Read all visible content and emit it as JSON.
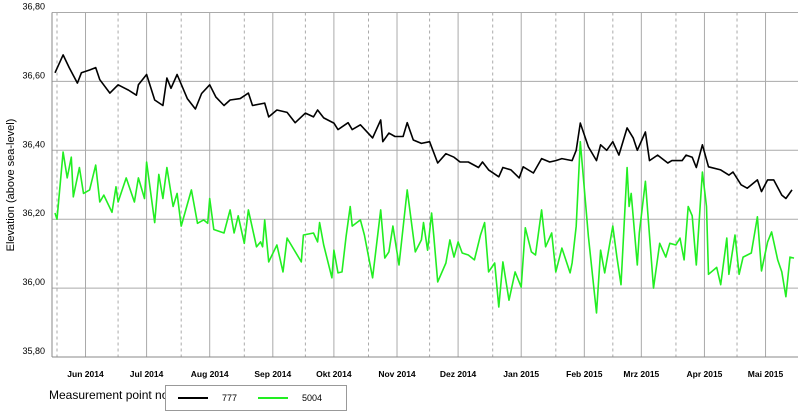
{
  "chart_data": {
    "type": "line",
    "title": "",
    "xlabel": "",
    "ylabel": "Elevation (above sea-level)",
    "ylim": [
      35.8,
      36.8
    ],
    "xlim": [
      "2014-05-30",
      "2015-05-31"
    ],
    "grid": true,
    "y_ticks": [
      "36,80",
      "36,60",
      "36,40",
      "36,20",
      "36,00",
      "35,80"
    ],
    "y_tick_values": [
      36.8,
      36.6,
      36.4,
      36.2,
      36.0,
      35.8
    ],
    "x_ticks": [
      "Jun 2014",
      "Jul 2014",
      "Aug 2014",
      "Sep 2014",
      "Okt 2014",
      "Nov 2014",
      "Dez 2014",
      "Jan 2015",
      "Feb 2015",
      "Mrz 2015",
      "Apr 2015",
      "Mai 2015"
    ],
    "x_tick_dates": [
      "2014-06-15",
      "2014-07-15",
      "2014-08-15",
      "2014-09-15",
      "2014-10-15",
      "2014-11-15",
      "2014-12-15",
      "2015-01-15",
      "2015-02-15",
      "2015-03-15",
      "2015-04-15",
      "2015-05-15"
    ],
    "legend": {
      "title": "Measurement point no.",
      "placement": "bottom"
    },
    "series": [
      {
        "name": "777",
        "color": "#000000",
        "x": [
          "2014-05-31",
          "2014-06-04",
          "2014-06-07",
          "2014-06-11",
          "2014-06-13",
          "2014-06-17",
          "2014-06-20",
          "2014-06-22",
          "2014-06-27",
          "2014-07-01",
          "2014-07-06",
          "2014-07-10",
          "2014-07-11",
          "2014-07-15",
          "2014-07-19",
          "2014-07-23",
          "2014-07-25",
          "2014-07-27",
          "2014-07-30",
          "2014-08-04",
          "2014-08-08",
          "2014-08-11",
          "2014-08-15",
          "2014-08-18",
          "2014-08-22",
          "2014-08-25",
          "2014-08-30",
          "2014-09-03",
          "2014-09-05",
          "2014-09-11",
          "2014-09-13",
          "2014-09-17",
          "2014-09-22",
          "2014-09-26",
          "2014-10-01",
          "2014-10-05",
          "2014-10-07",
          "2014-10-10",
          "2014-10-15",
          "2014-10-17",
          "2014-10-22",
          "2014-10-24",
          "2014-10-28",
          "2014-11-03",
          "2014-11-07",
          "2014-11-08",
          "2014-11-11",
          "2014-11-14",
          "2014-11-18",
          "2014-11-20",
          "2014-11-23",
          "2014-11-27",
          "2014-12-01",
          "2014-12-05",
          "2014-12-09",
          "2014-12-13",
          "2014-12-16",
          "2014-12-20",
          "2014-12-25",
          "2014-12-27",
          "2014-12-30",
          "2015-01-04",
          "2015-01-06",
          "2015-01-10",
          "2015-01-14",
          "2015-01-16",
          "2015-01-21",
          "2015-01-25",
          "2015-01-29",
          "2015-02-01",
          "2015-02-04",
          "2015-02-09",
          "2015-02-11",
          "2015-02-13",
          "2015-02-17",
          "2015-02-21",
          "2015-02-23",
          "2015-02-26",
          "2015-03-01",
          "2015-03-04",
          "2015-03-08",
          "2015-03-11",
          "2015-03-13",
          "2015-03-17",
          "2015-03-19",
          "2015-03-23",
          "2015-03-28",
          "2015-03-30",
          "2015-04-04",
          "2015-04-06",
          "2015-04-09",
          "2015-04-11",
          "2015-04-14",
          "2015-04-17",
          "2015-04-23",
          "2015-04-27",
          "2015-04-29",
          "2015-05-03",
          "2015-05-06",
          "2015-05-11",
          "2015-05-13",
          "2015-05-16",
          "2015-05-19",
          "2015-05-23",
          "2015-05-25",
          "2015-05-28"
        ],
        "values": [
          36.625,
          36.677,
          36.64,
          36.595,
          36.625,
          36.633,
          36.64,
          36.605,
          36.566,
          36.59,
          36.575,
          36.56,
          36.59,
          36.62,
          36.546,
          36.53,
          36.61,
          36.58,
          36.62,
          36.55,
          36.52,
          36.565,
          36.59,
          36.555,
          36.53,
          36.546,
          36.55,
          36.566,
          36.53,
          36.537,
          36.497,
          36.517,
          36.51,
          36.48,
          36.508,
          36.497,
          36.517,
          36.494,
          36.479,
          36.46,
          36.48,
          36.46,
          36.474,
          36.436,
          36.488,
          36.425,
          36.45,
          36.44,
          36.44,
          36.48,
          36.43,
          36.42,
          36.425,
          36.363,
          36.39,
          36.38,
          36.366,
          36.366,
          36.35,
          36.366,
          36.343,
          36.323,
          36.35,
          36.343,
          36.32,
          36.352,
          36.334,
          36.376,
          36.366,
          36.37,
          36.376,
          36.37,
          36.4,
          36.479,
          36.41,
          36.37,
          36.416,
          36.4,
          36.425,
          36.386,
          36.465,
          36.436,
          36.4,
          36.453,
          36.37,
          36.386,
          36.363,
          36.37,
          36.37,
          36.386,
          36.38,
          36.35,
          36.416,
          36.352,
          36.343,
          36.328,
          36.337,
          36.3,
          36.29,
          36.314,
          36.28,
          36.314,
          36.314,
          36.27,
          36.26,
          36.285
        ]
      },
      {
        "name": "5004",
        "color": "#22ee22",
        "x": [
          "2014-05-31",
          "2014-06-01",
          "2014-06-04",
          "2014-06-06",
          "2014-06-08",
          "2014-06-09",
          "2014-06-12",
          "2014-06-14",
          "2014-06-17",
          "2014-06-20",
          "2014-06-22",
          "2014-06-24",
          "2014-06-28",
          "2014-06-30",
          "2014-07-01",
          "2014-07-05",
          "2014-07-09",
          "2014-07-11",
          "2014-07-14",
          "2014-07-15",
          "2014-07-19",
          "2014-07-21",
          "2014-07-23",
          "2014-07-25",
          "2014-07-28",
          "2014-07-30",
          "2014-08-01",
          "2014-08-06",
          "2014-08-09",
          "2014-08-12",
          "2014-08-14",
          "2014-08-15",
          "2014-08-17",
          "2014-08-22",
          "2014-08-25",
          "2014-08-27",
          "2014-08-29",
          "2014-09-01",
          "2014-09-03",
          "2014-09-07",
          "2014-09-09",
          "2014-09-10",
          "2014-09-11",
          "2014-09-13",
          "2014-09-17",
          "2014-09-20",
          "2014-09-22",
          "2014-09-29",
          "2014-09-30",
          "2014-10-05",
          "2014-10-07",
          "2014-10-08",
          "2014-10-10",
          "2014-10-14",
          "2014-10-15",
          "2014-10-17",
          "2014-10-19",
          "2014-10-21",
          "2014-10-23",
          "2014-10-24",
          "2014-10-28",
          "2014-10-30",
          "2014-11-03",
          "2014-11-07",
          "2014-11-09",
          "2014-11-11",
          "2014-11-13",
          "2014-11-16",
          "2014-11-20",
          "2014-11-24",
          "2014-11-27",
          "2014-11-28",
          "2014-11-30",
          "2014-12-02",
          "2014-12-03",
          "2014-12-05",
          "2014-12-09",
          "2014-12-11",
          "2014-12-13",
          "2014-12-15",
          "2014-12-17",
          "2014-12-20",
          "2014-12-23",
          "2014-12-26",
          "2014-12-28",
          "2014-12-30",
          "2015-01-02",
          "2015-01-04",
          "2015-01-06",
          "2015-01-09",
          "2015-01-12",
          "2015-01-15",
          "2015-01-17",
          "2015-01-20",
          "2015-01-22",
          "2015-01-25",
          "2015-01-27",
          "2015-01-30",
          "2015-02-01",
          "2015-02-04",
          "2015-02-08",
          "2015-02-09",
          "2015-02-11",
          "2015-02-13",
          "2015-02-17",
          "2015-02-21",
          "2015-02-23",
          "2015-02-25",
          "2015-03-01",
          "2015-03-03",
          "2015-03-05",
          "2015-03-08",
          "2015-03-09",
          "2015-03-10",
          "2015-03-13",
          "2015-03-14",
          "2015-03-17",
          "2015-03-21",
          "2015-03-24",
          "2015-03-27",
          "2015-03-29",
          "2015-04-01",
          "2015-04-03",
          "2015-04-05",
          "2015-04-07",
          "2015-04-09",
          "2015-04-11",
          "2015-04-14",
          "2015-04-16",
          "2015-04-17",
          "2015-04-21",
          "2015-04-23",
          "2015-04-26",
          "2015-04-27",
          "2015-04-30",
          "2015-05-02",
          "2015-05-04",
          "2015-05-08",
          "2015-05-11",
          "2015-05-13",
          "2015-05-16",
          "2015-05-18",
          "2015-05-21",
          "2015-05-23",
          "2015-05-25",
          "2015-05-27",
          "2015-05-29"
        ],
        "values": [
          36.218,
          36.2,
          36.395,
          36.32,
          36.38,
          36.265,
          36.35,
          36.275,
          36.285,
          36.357,
          36.25,
          36.27,
          36.22,
          36.294,
          36.25,
          36.32,
          36.25,
          36.32,
          36.26,
          36.366,
          36.19,
          36.33,
          36.26,
          36.35,
          36.237,
          36.275,
          36.18,
          36.285,
          36.188,
          36.198,
          36.188,
          36.26,
          36.17,
          36.16,
          36.227,
          36.16,
          36.21,
          36.13,
          36.227,
          36.12,
          36.134,
          36.12,
          36.198,
          36.076,
          36.125,
          36.047,
          36.145,
          36.076,
          36.154,
          36.16,
          36.134,
          36.19,
          36.125,
          36.03,
          36.11,
          36.044,
          36.047,
          36.15,
          36.237,
          36.18,
          36.198,
          36.154,
          36.03,
          36.227,
          36.087,
          36.105,
          36.18,
          36.067,
          36.285,
          36.105,
          36.14,
          36.19,
          36.11,
          36.218,
          36.154,
          36.018,
          36.073,
          36.14,
          36.09,
          36.134,
          36.102,
          36.096,
          36.082,
          36.154,
          36.19,
          36.047,
          36.073,
          35.945,
          36.076,
          35.965,
          36.047,
          36.003,
          36.175,
          36.105,
          36.096,
          36.227,
          36.12,
          36.16,
          36.047,
          36.116,
          36.044,
          36.073,
          36.18,
          36.425,
          36.15,
          35.928,
          36.11,
          36.044,
          36.18,
          36.09,
          36.01,
          36.35,
          36.237,
          36.275,
          36.067,
          36.16,
          36.31,
          36.0,
          36.13,
          36.09,
          36.13,
          36.125,
          36.145,
          36.082,
          36.237,
          36.21,
          36.067,
          36.337,
          36.237,
          36.04,
          36.06,
          36.01,
          36.145,
          36.04,
          36.154,
          36.04,
          36.09,
          36.102,
          36.207,
          36.05,
          36.134,
          36.163,
          36.082,
          36.047,
          35.975,
          36.09,
          36.087
        ]
      }
    ]
  }
}
